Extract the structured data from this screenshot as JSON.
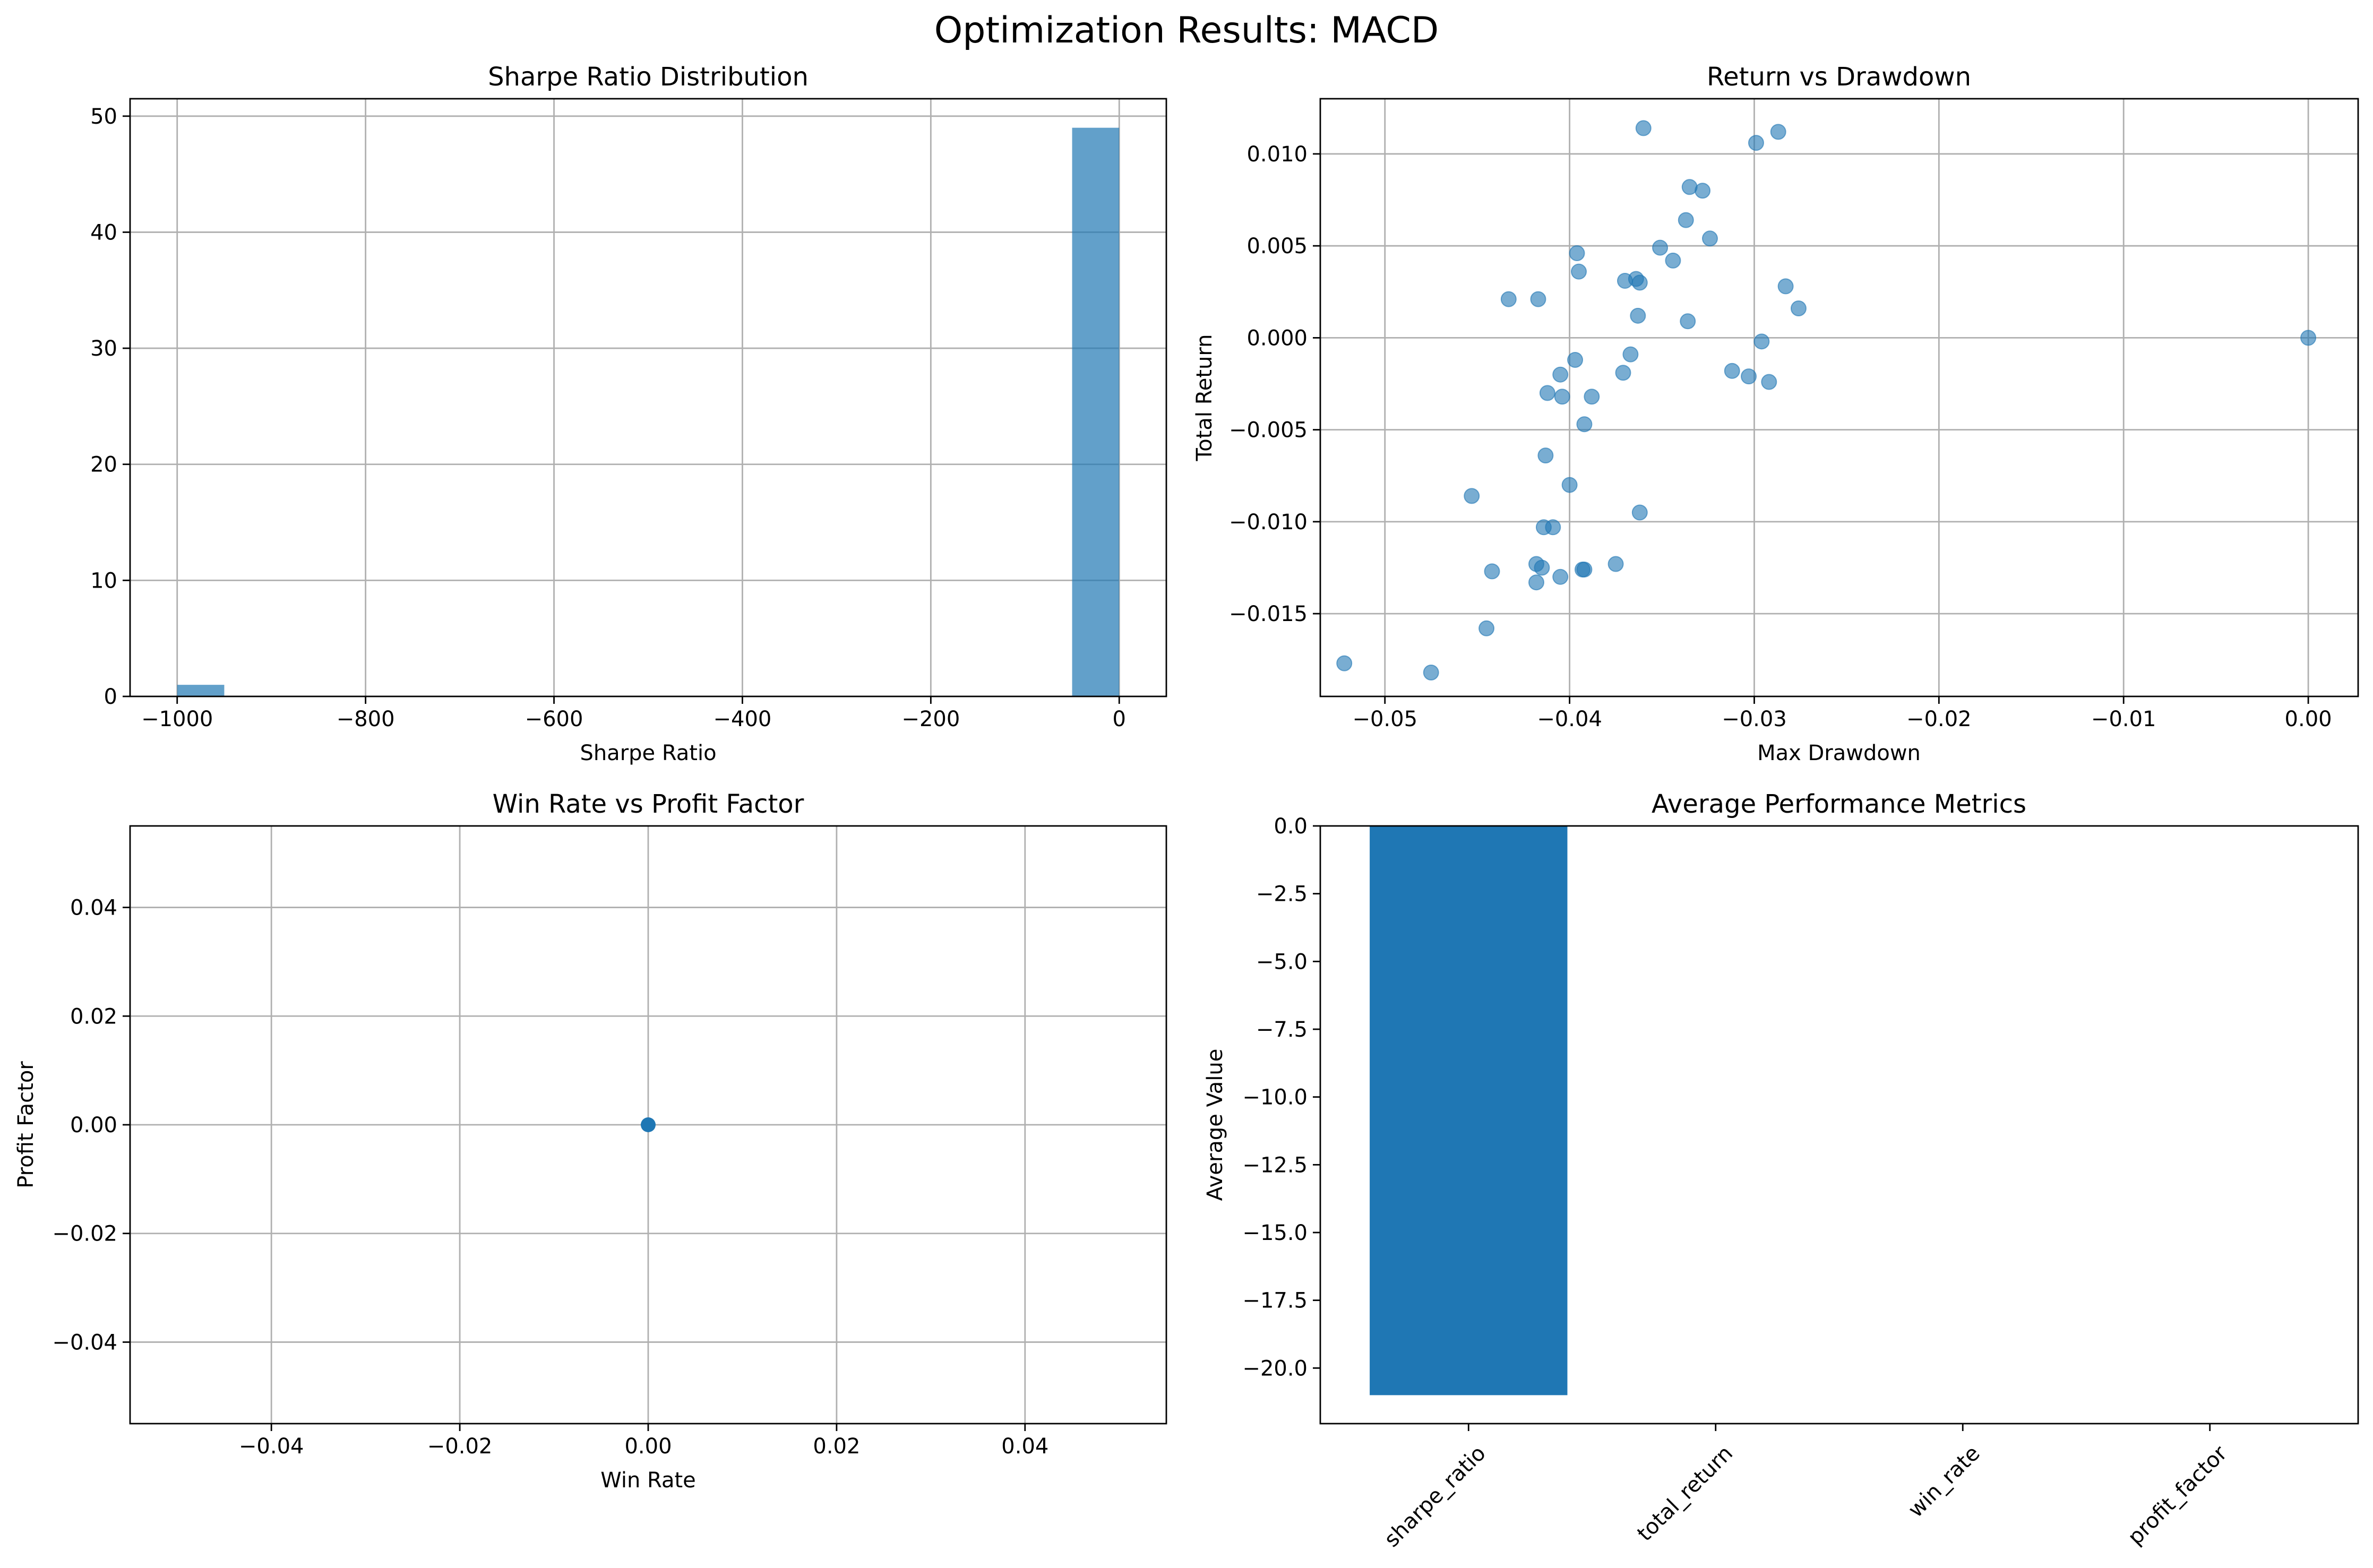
{
  "figure": {
    "title": "Optimization Results: MACD"
  },
  "chart_data": [
    {
      "type": "bar",
      "subtype": "histogram",
      "title": "Sharpe Ratio Distribution",
      "xlabel": "Sharpe Ratio",
      "ylabel": "",
      "xlim": [
        -1050,
        50
      ],
      "ylim": [
        0,
        51.5
      ],
      "xticks": [
        -1000,
        -800,
        -600,
        -400,
        -200,
        0
      ],
      "yticks": [
        0,
        10,
        20,
        30,
        40,
        50
      ],
      "bins": [
        {
          "start": -1000,
          "end": -950,
          "count": 1
        },
        {
          "start": -50,
          "end": 0,
          "count": 49
        }
      ],
      "color": "#1f77b4",
      "alpha": 0.7,
      "grid": true
    },
    {
      "type": "scatter",
      "title": "Return vs Drawdown",
      "xlabel": "Max Drawdown",
      "ylabel": "Total Return",
      "xlim": [
        -0.0535,
        0.0027
      ],
      "ylim": [
        -0.0195,
        0.013
      ],
      "xticks": [
        -0.05,
        -0.04,
        -0.03,
        -0.02,
        -0.01,
        0.0
      ],
      "xtick_labels": [
        "−0.05",
        "−0.04",
        "−0.03",
        "−0.02",
        "−0.01",
        "0.00"
      ],
      "yticks": [
        -0.015,
        -0.01,
        -0.005,
        0.0,
        0.005,
        0.01
      ],
      "ytick_labels": [
        "−0.015",
        "−0.010",
        "−0.005",
        "0.000",
        "0.005",
        "0.010"
      ],
      "color": "#1f77b4",
      "alpha": 0.6,
      "grid": true,
      "points": [
        [
          -0.0522,
          -0.0177
        ],
        [
          -0.0475,
          -0.0182
        ],
        [
          -0.0453,
          -0.0086
        ],
        [
          -0.0445,
          -0.0158
        ],
        [
          -0.0442,
          -0.0127
        ],
        [
          -0.0433,
          0.0021
        ],
        [
          -0.0418,
          -0.0133
        ],
        [
          -0.0418,
          -0.0123
        ],
        [
          -0.0417,
          0.0021
        ],
        [
          -0.0415,
          -0.0125
        ],
        [
          -0.0414,
          -0.0103
        ],
        [
          -0.0413,
          -0.0064
        ],
        [
          -0.0412,
          -0.003
        ],
        [
          -0.0409,
          -0.0103
        ],
        [
          -0.0405,
          -0.013
        ],
        [
          -0.0405,
          -0.002
        ],
        [
          -0.0404,
          -0.0032
        ],
        [
          -0.04,
          -0.008
        ],
        [
          -0.0397,
          -0.0012
        ],
        [
          -0.0396,
          0.0046
        ],
        [
          -0.0395,
          0.0036
        ],
        [
          -0.0393,
          -0.0126
        ],
        [
          -0.0392,
          -0.0126
        ],
        [
          -0.0392,
          -0.0047
        ],
        [
          -0.0388,
          -0.0032
        ],
        [
          -0.0375,
          -0.0123
        ],
        [
          -0.0371,
          -0.0019
        ],
        [
          -0.037,
          0.0031
        ],
        [
          -0.0367,
          -0.0009
        ],
        [
          -0.0364,
          0.0032
        ],
        [
          -0.0363,
          0.0012
        ],
        [
          -0.0362,
          0.003
        ],
        [
          -0.0362,
          -0.0095
        ],
        [
          -0.036,
          0.0114
        ],
        [
          -0.0351,
          0.0049
        ],
        [
          -0.0344,
          0.0042
        ],
        [
          -0.0337,
          0.0064
        ],
        [
          -0.0336,
          0.0009
        ],
        [
          -0.0335,
          0.0082
        ],
        [
          -0.0328,
          0.008
        ],
        [
          -0.0324,
          0.0054
        ],
        [
          -0.0312,
          -0.0018
        ],
        [
          -0.0303,
          -0.0021
        ],
        [
          -0.0299,
          0.0106
        ],
        [
          -0.0296,
          -0.0002
        ],
        [
          -0.0292,
          -0.0024
        ],
        [
          -0.0287,
          0.0112
        ],
        [
          -0.0283,
          0.0028
        ],
        [
          -0.0276,
          0.0016
        ],
        [
          0.0,
          0.0
        ]
      ]
    },
    {
      "type": "scatter",
      "title": "Win Rate vs Profit Factor",
      "xlabel": "Win Rate",
      "ylabel": "Profit Factor",
      "xlim": [
        -0.055,
        0.055
      ],
      "ylim": [
        -0.055,
        0.055
      ],
      "xticks": [
        -0.04,
        -0.02,
        0.0,
        0.02,
        0.04
      ],
      "xtick_labels": [
        "−0.04",
        "−0.02",
        "0.00",
        "0.02",
        "0.04"
      ],
      "yticks": [
        -0.04,
        -0.02,
        0.0,
        0.02,
        0.04
      ],
      "ytick_labels": [
        "−0.04",
        "−0.02",
        "0.00",
        "0.02",
        "0.04"
      ],
      "color": "#1f77b4",
      "grid": true,
      "points": [
        [
          0.0,
          0.0
        ]
      ]
    },
    {
      "type": "bar",
      "title": "Average Performance Metrics",
      "xlabel": "",
      "ylabel": "Average Value",
      "categories": [
        "sharpe_ratio",
        "total_return",
        "win_rate",
        "profit_factor"
      ],
      "values": [
        -21.0,
        -0.002,
        0.0,
        0.0
      ],
      "ylim": [
        -22.05,
        0.0
      ],
      "yticks": [
        0.0,
        -2.5,
        -5.0,
        -7.5,
        -10.0,
        -12.5,
        -15.0,
        -17.5,
        -20.0
      ],
      "ytick_labels": [
        "0.0",
        "−2.5",
        "−5.0",
        "−7.5",
        "−10.0",
        "−12.5",
        "−15.0",
        "−17.5",
        "−20.0"
      ],
      "color": "#1f77b4",
      "xtick_rotation": 45,
      "grid": false
    }
  ]
}
